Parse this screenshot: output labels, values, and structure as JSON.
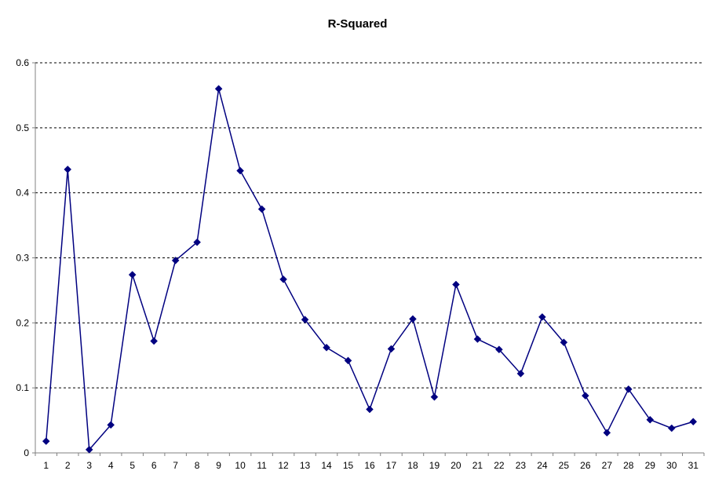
{
  "chart_data": {
    "type": "line",
    "title": "R-Squared",
    "xlabel": "",
    "ylabel": "",
    "categories": [
      "1",
      "2",
      "3",
      "4",
      "5",
      "6",
      "7",
      "8",
      "9",
      "10",
      "11",
      "12",
      "13",
      "14",
      "15",
      "16",
      "17",
      "18",
      "19",
      "20",
      "21",
      "22",
      "23",
      "24",
      "25",
      "26",
      "27",
      "28",
      "29",
      "30",
      "31"
    ],
    "series": [
      {
        "values": [
          0.018,
          0.436,
          0.005,
          0.043,
          0.274,
          0.172,
          0.296,
          0.324,
          0.56,
          0.434,
          0.375,
          0.267,
          0.205,
          0.162,
          0.142,
          0.067,
          0.16,
          0.206,
          0.086,
          0.259,
          0.175,
          0.159,
          0.122,
          0.209,
          0.17,
          0.088,
          0.031,
          0.098,
          0.051,
          0.038,
          0.048
        ]
      }
    ],
    "ylim": [
      0,
      0.6
    ],
    "yticks": [
      "0",
      "0.1",
      "0.2",
      "0.3",
      "0.4",
      "0.5",
      "0.6"
    ],
    "grid": "horizontal dashed",
    "legend": "none",
    "line_color": "#000080",
    "marker": "diamond"
  }
}
